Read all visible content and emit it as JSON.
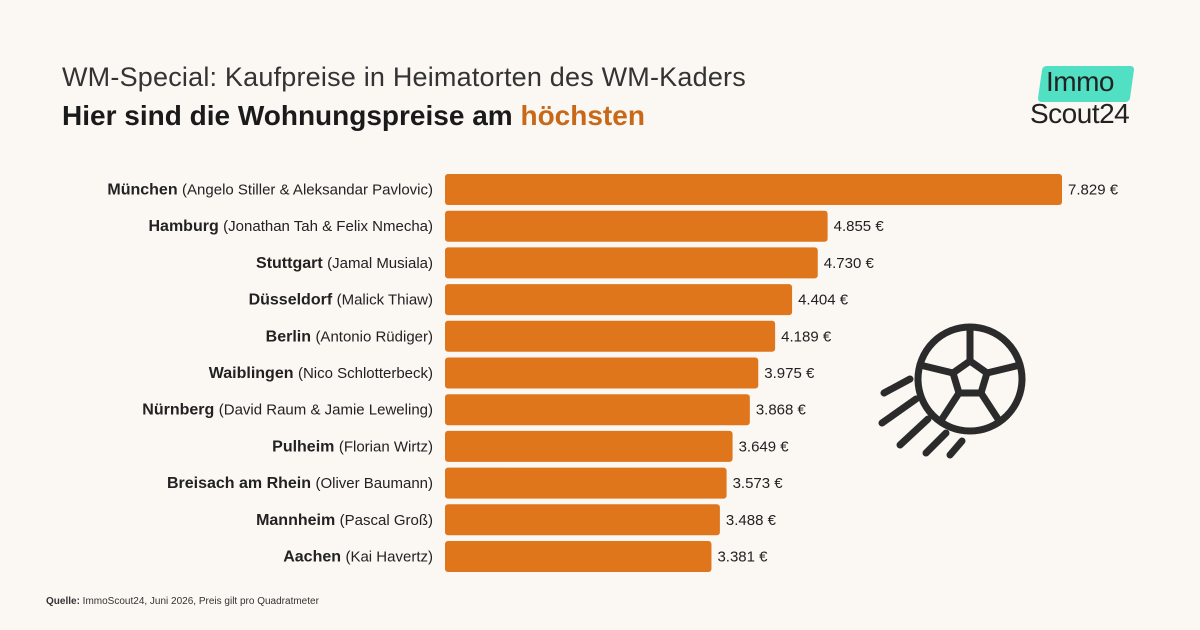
{
  "title": "WM-Special: Kaufpreise in Heimatorten des WM-Kaders",
  "subtitle_main": "Hier sind die Wohnungspreise am ",
  "subtitle_highlight": "höchsten",
  "logo": {
    "line1": "Immo",
    "line2": "Scout24"
  },
  "source_label": "Quelle:",
  "source_text": " ImmoScout24, Juni 2026, Preis gilt pro Quadratmeter",
  "icon": "football-icon",
  "colors": {
    "bar": "#e0761c",
    "highlight": "#c8691a",
    "logo_badge": "#52e0c4"
  },
  "chart_data": {
    "type": "bar",
    "orientation": "horizontal",
    "categories": [
      {
        "city": "München",
        "players": "(Angelo Stiller & Aleksandar Pavlovic)"
      },
      {
        "city": "Hamburg",
        "players": "(Jonathan Tah & Felix Nmecha)"
      },
      {
        "city": "Stuttgart",
        "players": "(Jamal Musiala)"
      },
      {
        "city": "Düsseldorf",
        "players": "(Malick Thiaw)"
      },
      {
        "city": "Berlin",
        "players": "(Antonio Rüdiger)"
      },
      {
        "city": "Waiblingen",
        "players": "(Nico Schlotterbeck)"
      },
      {
        "city": "Nürnberg",
        "players": "(David Raum & Jamie Leweling)"
      },
      {
        "city": "Pulheim",
        "players": "(Florian Wirtz)"
      },
      {
        "city": "Breisach am Rhein",
        "players": "(Oliver Baumann)"
      },
      {
        "city": "Mannheim",
        "players": "(Pascal Groß)"
      },
      {
        "city": "Aachen",
        "players": "(Kai Havertz)"
      }
    ],
    "values": [
      7829,
      4855,
      4730,
      4404,
      4189,
      3975,
      3868,
      3649,
      3573,
      3488,
      3381
    ],
    "value_labels": [
      "7.829 €",
      "4.855 €",
      "4.730 €",
      "4.404 €",
      "4.189 €",
      "3.975 €",
      "3.868 €",
      "3.649 €",
      "3.573 €",
      "3.488 €",
      "3.381 €"
    ],
    "unit": "€",
    "title": "",
    "xlabel": "",
    "ylabel": "",
    "xlim": [
      0,
      7829
    ],
    "grid": false,
    "legend": "none"
  }
}
